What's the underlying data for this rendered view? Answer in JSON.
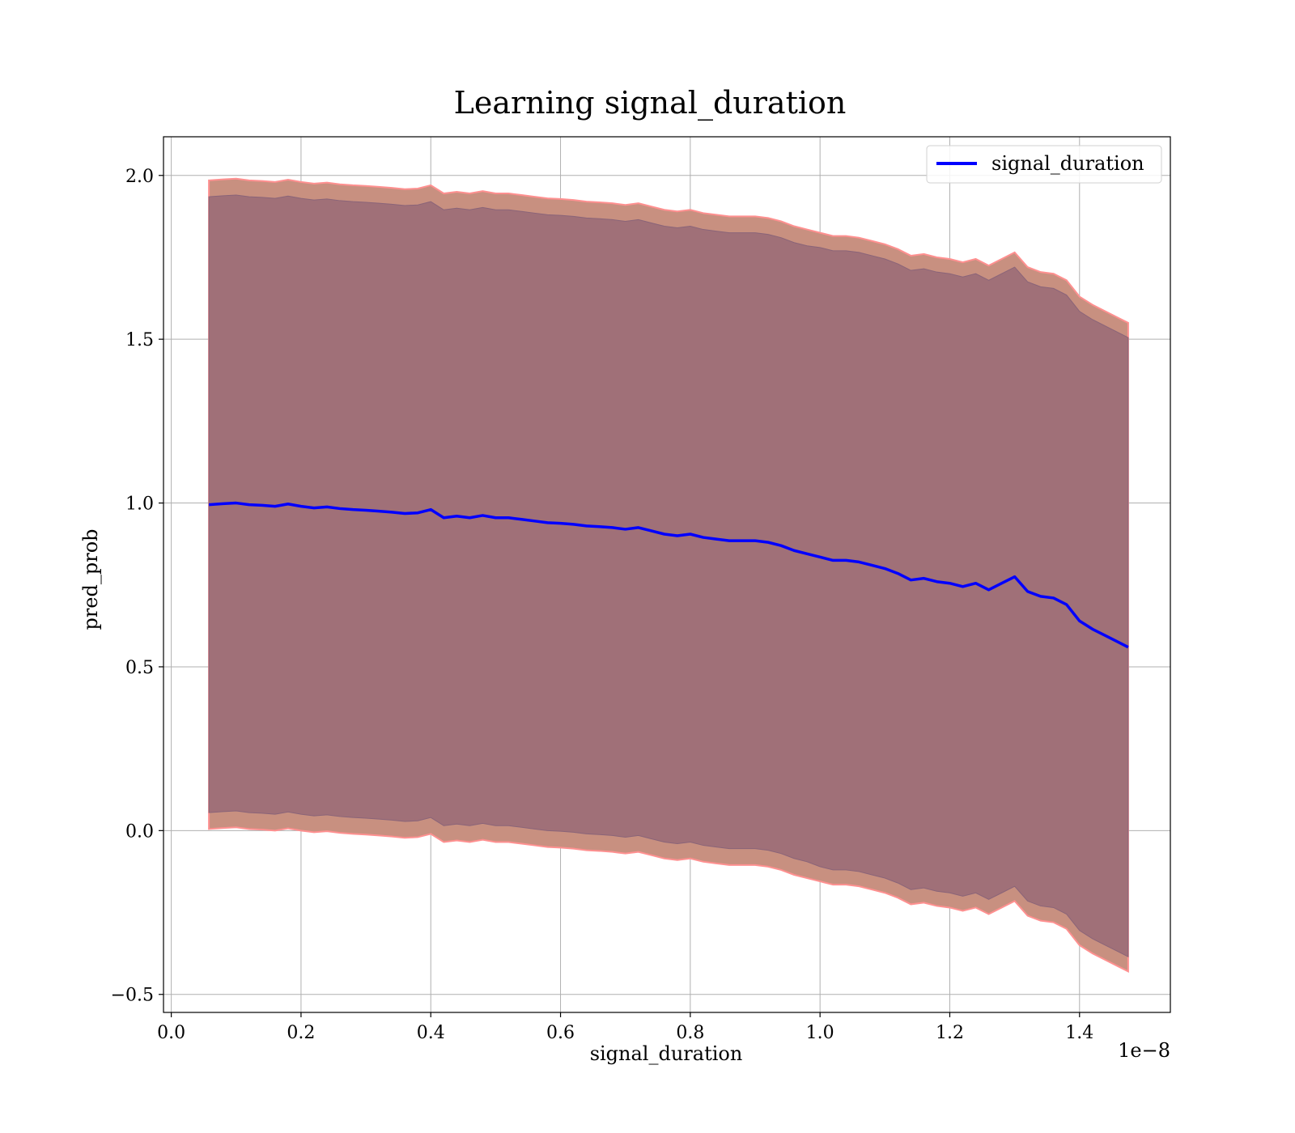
{
  "chart_data": {
    "type": "line",
    "title": "Learning signal_duration",
    "xlabel": "signal_duration",
    "ylabel": "pred_prob",
    "x_offset_label": "1e−8",
    "xlim": [
      -0.012,
      1.54
    ],
    "ylim": [
      -0.555,
      2.118
    ],
    "x_ticks": [
      0.0,
      0.2,
      0.4,
      0.6,
      0.8,
      1.0,
      1.2,
      1.4
    ],
    "x_tick_labels": [
      "0.0",
      "0.2",
      "0.4",
      "0.6",
      "0.8",
      "1.0",
      "1.2",
      "1.4"
    ],
    "y_ticks": [
      -0.5,
      0.0,
      0.5,
      1.0,
      1.5,
      2.0
    ],
    "y_tick_labels": [
      "−0.5",
      "0.0",
      "0.5",
      "1.0",
      "1.5",
      "2.0"
    ],
    "grid": true,
    "legend": {
      "placement": "top-right",
      "entries": [
        "signal_duration"
      ]
    },
    "colors": {
      "line": "#0000ff",
      "inner_band": "#a07078",
      "outer_band": "#c89080",
      "band_edge": "#ff9090"
    },
    "x": [
      0.058,
      0.08,
      0.1,
      0.12,
      0.14,
      0.16,
      0.18,
      0.2,
      0.22,
      0.24,
      0.26,
      0.28,
      0.3,
      0.32,
      0.34,
      0.36,
      0.38,
      0.4,
      0.42,
      0.44,
      0.46,
      0.48,
      0.5,
      0.52,
      0.54,
      0.56,
      0.58,
      0.6,
      0.62,
      0.64,
      0.66,
      0.68,
      0.7,
      0.72,
      0.74,
      0.76,
      0.78,
      0.8,
      0.82,
      0.84,
      0.86,
      0.88,
      0.9,
      0.92,
      0.94,
      0.96,
      0.98,
      1.0,
      1.02,
      1.04,
      1.06,
      1.08,
      1.1,
      1.12,
      1.14,
      1.16,
      1.18,
      1.2,
      1.22,
      1.24,
      1.26,
      1.28,
      1.3,
      1.32,
      1.34,
      1.36,
      1.38,
      1.4,
      1.42,
      1.44,
      1.46,
      1.475
    ],
    "series": [
      {
        "name": "signal_duration",
        "values": [
          0.995,
          0.998,
          1.0,
          0.995,
          0.993,
          0.99,
          0.997,
          0.99,
          0.985,
          0.988,
          0.983,
          0.98,
          0.978,
          0.975,
          0.972,
          0.968,
          0.97,
          0.98,
          0.955,
          0.96,
          0.955,
          0.962,
          0.955,
          0.955,
          0.95,
          0.945,
          0.94,
          0.938,
          0.935,
          0.93,
          0.928,
          0.925,
          0.92,
          0.925,
          0.915,
          0.905,
          0.9,
          0.905,
          0.895,
          0.89,
          0.885,
          0.885,
          0.885,
          0.88,
          0.87,
          0.855,
          0.845,
          0.835,
          0.825,
          0.825,
          0.82,
          0.81,
          0.8,
          0.785,
          0.765,
          0.77,
          0.76,
          0.755,
          0.745,
          0.755,
          0.735,
          0.755,
          0.775,
          0.73,
          0.715,
          0.71,
          0.69,
          0.64,
          0.615,
          0.595,
          0.575,
          0.56
        ]
      }
    ],
    "band_inner_halfwidth": [
      0.94,
      0.94,
      0.94,
      0.94,
      0.94,
      0.94,
      0.94,
      0.94,
      0.94,
      0.94,
      0.94,
      0.94,
      0.94,
      0.94,
      0.94,
      0.94,
      0.94,
      0.94,
      0.94,
      0.94,
      0.94,
      0.94,
      0.94,
      0.94,
      0.94,
      0.94,
      0.94,
      0.94,
      0.94,
      0.94,
      0.94,
      0.94,
      0.94,
      0.94,
      0.94,
      0.94,
      0.94,
      0.94,
      0.94,
      0.94,
      0.94,
      0.94,
      0.94,
      0.94,
      0.94,
      0.94,
      0.94,
      0.945,
      0.945,
      0.945,
      0.945,
      0.945,
      0.945,
      0.945,
      0.945,
      0.945,
      0.945,
      0.945,
      0.945,
      0.945,
      0.945,
      0.945,
      0.945,
      0.945,
      0.945,
      0.945,
      0.945,
      0.945,
      0.945,
      0.945,
      0.945,
      0.945
    ],
    "band_outer_halfwidth": [
      0.99,
      0.99,
      0.99,
      0.99,
      0.99,
      0.99,
      0.99,
      0.99,
      0.99,
      0.99,
      0.99,
      0.99,
      0.99,
      0.99,
      0.99,
      0.99,
      0.99,
      0.99,
      0.99,
      0.99,
      0.99,
      0.99,
      0.99,
      0.99,
      0.99,
      0.99,
      0.99,
      0.99,
      0.99,
      0.99,
      0.99,
      0.99,
      0.99,
      0.99,
      0.99,
      0.99,
      0.99,
      0.99,
      0.99,
      0.99,
      0.99,
      0.99,
      0.99,
      0.99,
      0.99,
      0.99,
      0.99,
      0.99,
      0.99,
      0.99,
      0.99,
      0.99,
      0.99,
      0.99,
      0.99,
      0.99,
      0.99,
      0.99,
      0.99,
      0.99,
      0.99,
      0.99,
      0.99,
      0.99,
      0.99,
      0.99,
      0.99,
      0.99,
      0.99,
      0.99,
      0.99,
      0.99
    ]
  }
}
